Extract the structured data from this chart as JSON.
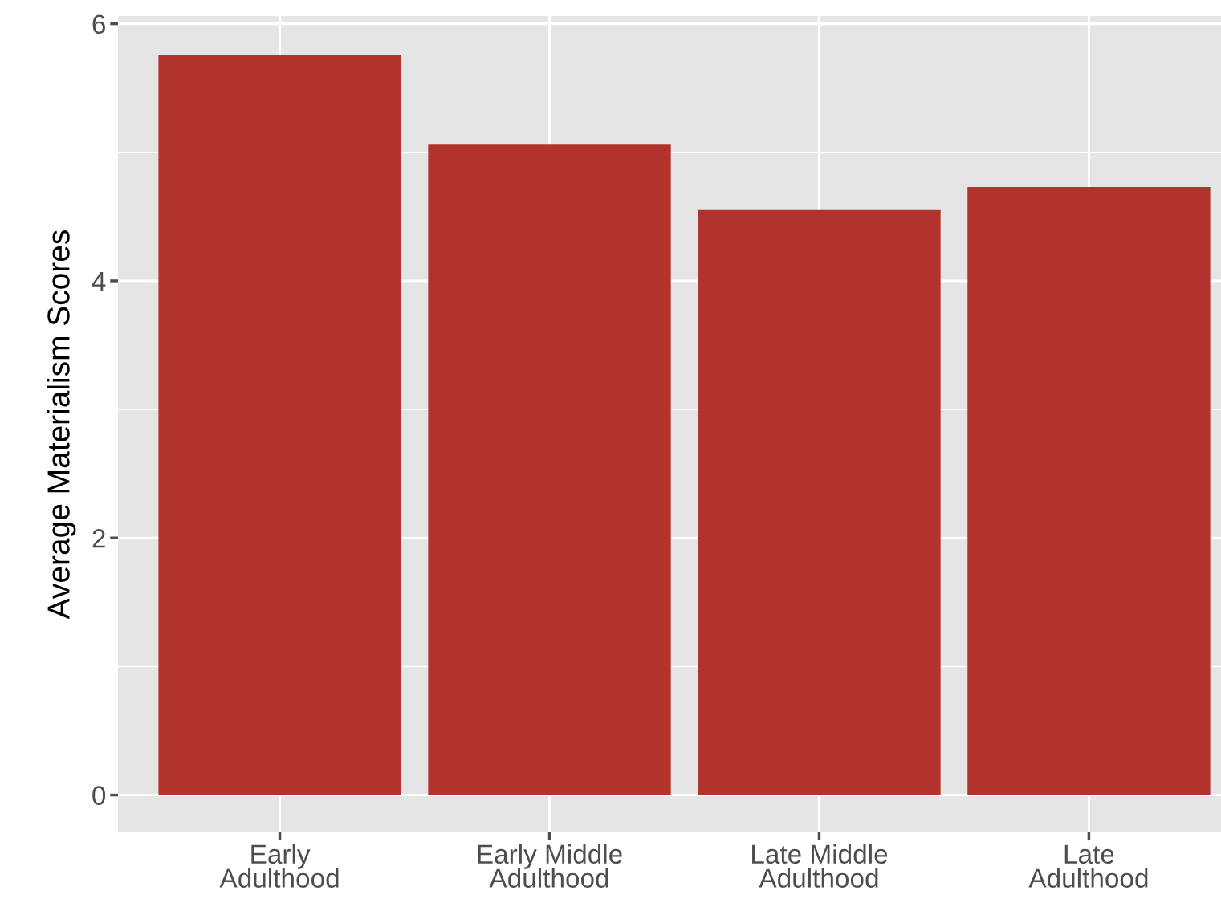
{
  "chart_data": {
    "type": "bar",
    "ylabel": "Average Materialism Scores",
    "categories": [
      "Early\nAdulthood",
      "Early Middle\nAdulthood",
      "Late Middle\nAdulthood",
      "Late\nAdulthood"
    ],
    "values": [
      5.76,
      5.06,
      4.55,
      4.73
    ],
    "color": "#b2332d",
    "ylim": [
      -0.29,
      6.06
    ],
    "yticks": [
      0,
      2,
      4,
      6
    ],
    "grid": true
  }
}
